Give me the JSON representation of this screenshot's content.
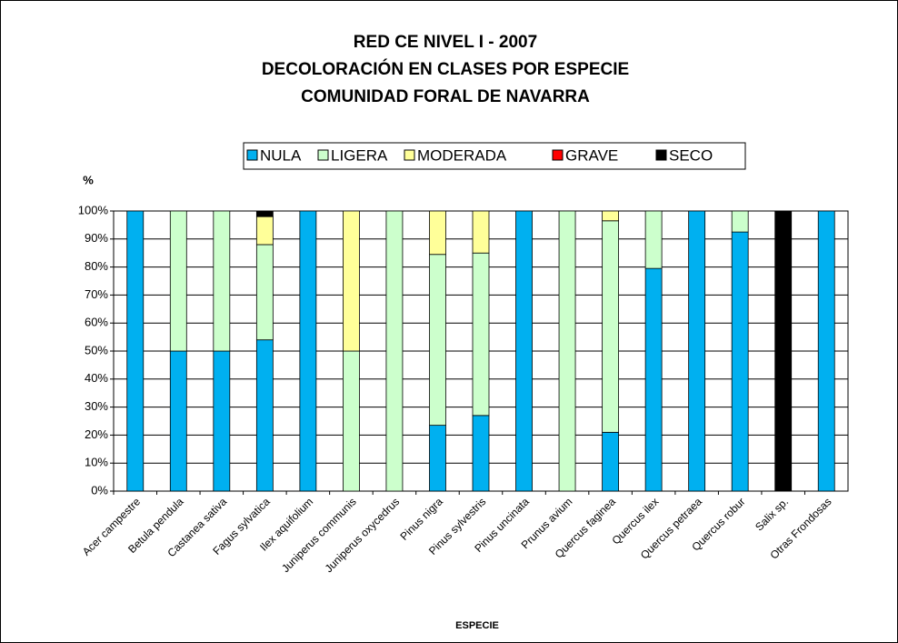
{
  "chart_data": {
    "type": "stacked_bar",
    "title": [
      "RED CE NIVEL I - 2007",
      "DECOLORACIÓN EN CLASES POR ESPECIE",
      "COMUNIDAD FORAL DE NAVARRA"
    ],
    "y_label": "%",
    "x_label": "ESPECIE",
    "categories": [
      "Acer campestre",
      "Betula pendula",
      "Castanea sativa",
      "Fagus sylvatica",
      "Ilex aquifolium",
      "Juniperus communis",
      "Juniperus oxycedrus",
      "Pinus nigra",
      "Pinus sylvestris",
      "Pinus uncinata",
      "Prunus avium",
      "Quercus faginea",
      "Quercus ilex",
      "Quercus petraea",
      "Quercus robur",
      "Salix sp.",
      "Otras Frondosas"
    ],
    "series": [
      {
        "name": "NULA",
        "color": "#00b0f0",
        "values": [
          100,
          50,
          50,
          54,
          100,
          0,
          0,
          23.5,
          27,
          100,
          0,
          21,
          79.5,
          100,
          92.5,
          0,
          100
        ]
      },
      {
        "name": "LIGERA",
        "color": "#ccffcc",
        "values": [
          0,
          50,
          50,
          34,
          0,
          50,
          100,
          61,
          58,
          0,
          100,
          75.5,
          20.5,
          0,
          7.5,
          0,
          0
        ]
      },
      {
        "name": "MODERADA",
        "color": "#ffff99",
        "values": [
          0,
          0,
          0,
          10,
          0,
          50,
          0,
          15.5,
          15,
          0,
          0,
          3.5,
          0,
          0,
          0,
          0,
          0
        ]
      },
      {
        "name": "GRAVE",
        "color": "#ff0000",
        "values": [
          0,
          0,
          0,
          0,
          0,
          0,
          0,
          0,
          0,
          0,
          0,
          0,
          0,
          0,
          0,
          0,
          0
        ]
      },
      {
        "name": "SECO",
        "color": "#000000",
        "values": [
          0,
          0,
          0,
          2,
          0,
          0,
          0,
          0,
          0,
          0,
          0,
          0,
          0,
          0,
          0,
          100,
          0
        ]
      }
    ],
    "ylim": [
      0,
      100
    ],
    "yticks": [
      {
        "value": 0,
        "label": "0%"
      },
      {
        "value": 10,
        "label": "10%"
      },
      {
        "value": 20,
        "label": "20%"
      },
      {
        "value": 30,
        "label": "30%"
      },
      {
        "value": 40,
        "label": "40%"
      },
      {
        "value": 50,
        "label": "50%"
      },
      {
        "value": 60,
        "label": "60%"
      },
      {
        "value": 70,
        "label": "70%"
      },
      {
        "value": 80,
        "label": "80%"
      },
      {
        "value": 90,
        "label": "90%"
      },
      {
        "value": 100,
        "label": "100%"
      }
    ],
    "grid": true,
    "legend": "top"
  }
}
